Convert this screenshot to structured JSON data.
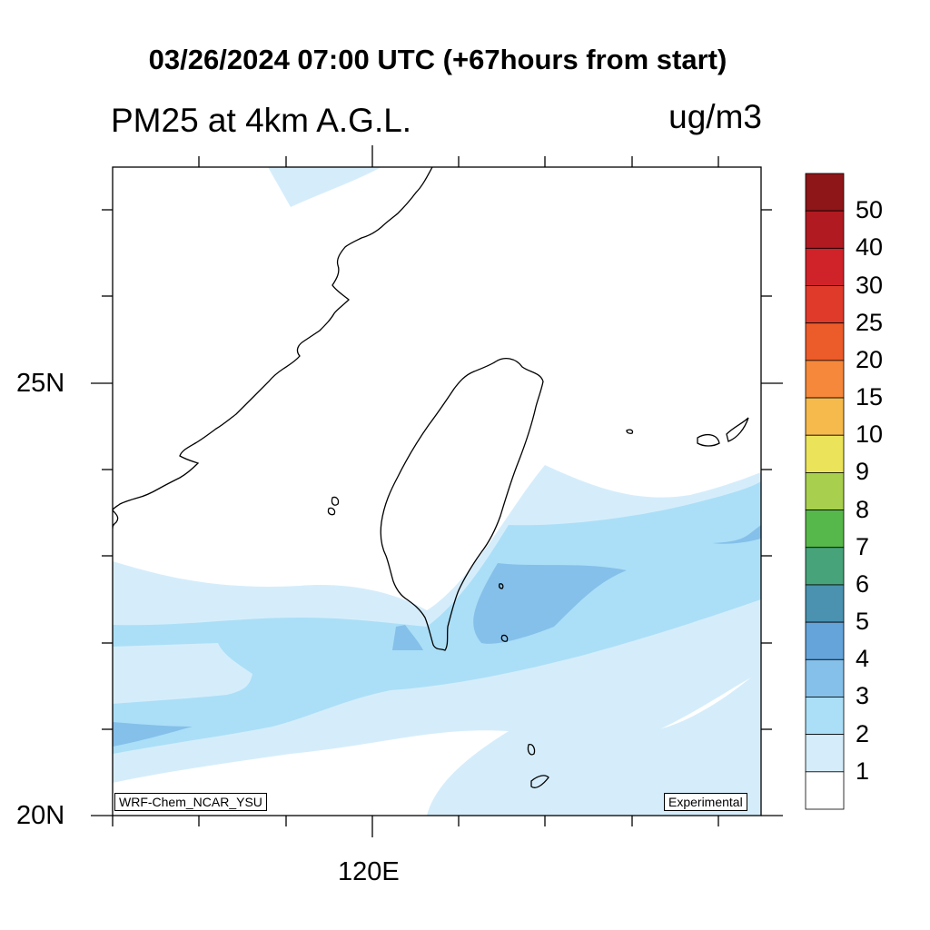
{
  "header": {
    "main_title": "03/26/2024 07:00 UTC (+67hours from start)",
    "left_title": "PM25 at 4km A.G.L.",
    "right_title": "ug/m3"
  },
  "map": {
    "lat_labels": [
      "25N",
      "20N"
    ],
    "lon_labels": [
      "120E"
    ],
    "model_label": "WRF-Chem_NCAR_YSU",
    "status_label": "Experimental"
  },
  "colorbar": {
    "labels": [
      "50",
      "40",
      "30",
      "25",
      "20",
      "15",
      "10",
      "9",
      "8",
      "7",
      "6",
      "5",
      "4",
      "3",
      "2",
      "1"
    ],
    "colors": [
      "#8e1518",
      "#b11a21",
      "#d02229",
      "#e03a2a",
      "#ec5b2a",
      "#f5883a",
      "#f6b94c",
      "#ebe45a",
      "#a8cf4e",
      "#56b84a",
      "#47a37a",
      "#4a92b0",
      "#64a4da",
      "#85c0ea",
      "#abdff7",
      "#d5edfb",
      "#ffffff"
    ]
  },
  "fill_colors": {
    "level_1": "#d5edfb",
    "level_2": "#abdff7",
    "level_3": "#85c0ea"
  }
}
